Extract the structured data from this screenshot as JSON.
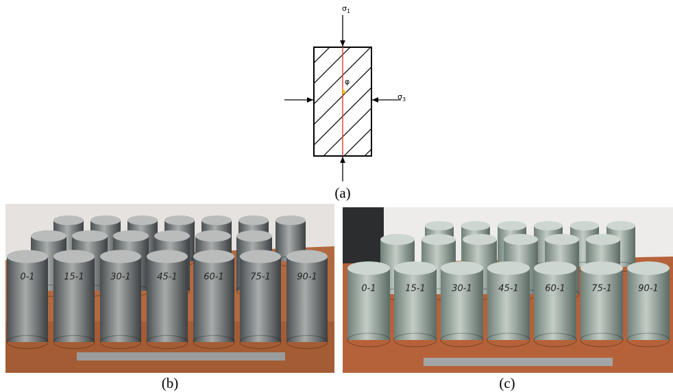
{
  "diagram": {
    "sigma1": {
      "symbol": "σ",
      "subscript": "1"
    },
    "sigma3": {
      "symbol": "σ",
      "subscript": "3"
    },
    "angle": "φ",
    "caption": "(a)"
  },
  "photos": [
    {
      "caption": "(b)",
      "specimen_labels": [
        "0-1",
        "15-1",
        "30-1",
        "45-1",
        "60-1",
        "75-1",
        "90-1"
      ]
    },
    {
      "caption": "(c)",
      "specimen_labels": [
        "0-1",
        "15-1",
        "30-1",
        "45-1",
        "60-1",
        "75-1",
        "90-1"
      ]
    }
  ]
}
